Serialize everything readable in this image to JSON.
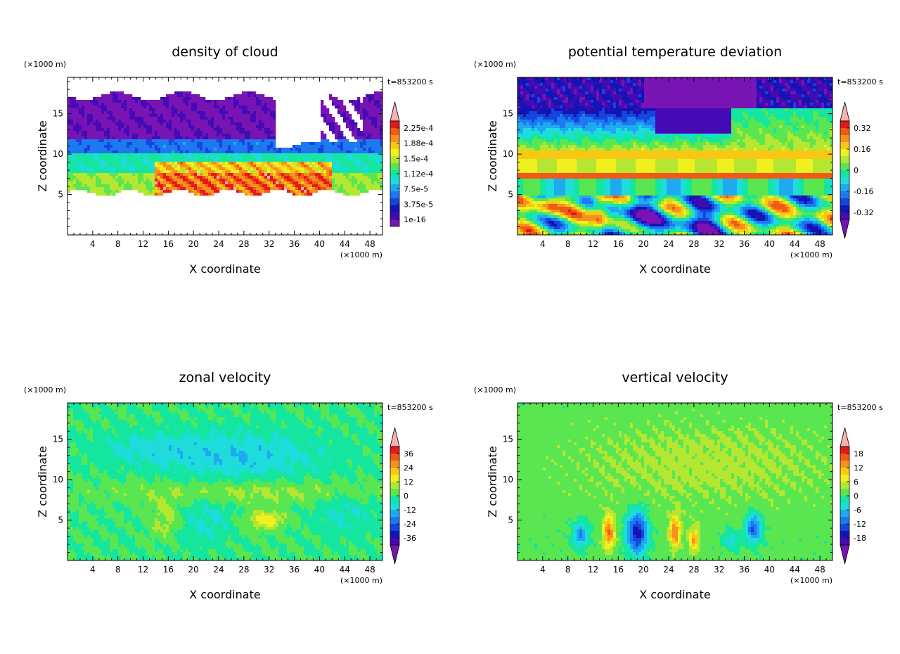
{
  "chart_data": [
    {
      "type": "heatmap",
      "title": "density of cloud",
      "xlabel": "X coordinate",
      "ylabel": "Z coordinate",
      "xunit": "(×1000 m)",
      "yunit": "(×1000 m)",
      "time_label": "t=853200 s",
      "xlim": [
        0,
        50
      ],
      "ylim": [
        0,
        19.5
      ],
      "xticks": [
        4,
        8,
        12,
        16,
        20,
        24,
        28,
        32,
        36,
        40,
        44,
        48
      ],
      "yticks": [
        5,
        10,
        15
      ],
      "colorbar": {
        "labels": [
          "2.25e-4",
          "1.88e-4",
          "1.5e-4",
          "1.12e-4",
          "7.5e-5",
          "3.75e-5",
          "1e-16"
        ],
        "colors": [
          "#f9b2b2",
          "#e41a1a",
          "#f05a14",
          "#f5911e",
          "#f9c814",
          "#f0f01e",
          "#b4e632",
          "#5ae650",
          "#14e6a0",
          "#1edcdc",
          "#1eaaf0",
          "#1e78f0",
          "#1446dc",
          "#1414b4",
          "#460ab4",
          "#7814b4"
        ],
        "top_triangle": true,
        "bottom_triangle": false
      },
      "field": "cloud"
    },
    {
      "type": "heatmap",
      "title": "potential temperature deviation",
      "xlabel": "X coordinate",
      "ylabel": "Z coordinate",
      "xunit": "(×1000 m)",
      "yunit": "(×1000 m)",
      "time_label": "t=853200 s",
      "xlim": [
        0,
        50
      ],
      "ylim": [
        0,
        19.5
      ],
      "xticks": [
        4,
        8,
        12,
        16,
        20,
        24,
        28,
        32,
        36,
        40,
        44,
        48
      ],
      "yticks": [
        5,
        10,
        15
      ],
      "colorbar": {
        "labels": [
          "0.32",
          "0.16",
          "0",
          "-0.16",
          "-0.32"
        ],
        "colors": [
          "#f9b2b2",
          "#e41a1a",
          "#f05a14",
          "#f5911e",
          "#f9c814",
          "#f0f01e",
          "#b4e632",
          "#5ae650",
          "#14e6a0",
          "#1edcdc",
          "#1eaaf0",
          "#1e78f0",
          "#1446dc",
          "#1414b4",
          "#460ab4",
          "#7814b4"
        ],
        "top_triangle": true,
        "bottom_triangle": true
      },
      "field": "theta"
    },
    {
      "type": "heatmap",
      "title": "zonal velocity",
      "xlabel": "X coordinate",
      "ylabel": "Z coordinate",
      "xunit": "(×1000 m)",
      "yunit": "(×1000 m)",
      "time_label": "t=853200 s",
      "xlim": [
        0,
        50
      ],
      "ylim": [
        0,
        19.5
      ],
      "xticks": [
        4,
        8,
        12,
        16,
        20,
        24,
        28,
        32,
        36,
        40,
        44,
        48
      ],
      "yticks": [
        5,
        10,
        15
      ],
      "colorbar": {
        "labels": [
          "36",
          "24",
          "12",
          "0",
          "-12",
          "-24",
          "-36"
        ],
        "colors": [
          "#f9b2b2",
          "#e41a1a",
          "#f05a14",
          "#f5911e",
          "#f9c814",
          "#f0f01e",
          "#b4e632",
          "#5ae650",
          "#14e6a0",
          "#1edcdc",
          "#1eaaf0",
          "#1e78f0",
          "#1446dc",
          "#1414b4",
          "#460ab4",
          "#7814b4"
        ],
        "top_triangle": true,
        "bottom_triangle": true
      },
      "field": "u"
    },
    {
      "type": "heatmap",
      "title": "vertical velocity",
      "xlabel": "X coordinate",
      "ylabel": "Z coordinate",
      "xunit": "(×1000 m)",
      "yunit": "(×1000 m)",
      "time_label": "t=853200 s",
      "xlim": [
        0,
        50
      ],
      "ylim": [
        0,
        19.5
      ],
      "xticks": [
        4,
        8,
        12,
        16,
        20,
        24,
        28,
        32,
        36,
        40,
        44,
        48
      ],
      "yticks": [
        5,
        10,
        15
      ],
      "colorbar": {
        "labels": [
          "18",
          "12",
          "6",
          "0",
          "-6",
          "-12",
          "-18"
        ],
        "colors": [
          "#f9b2b2",
          "#e41a1a",
          "#f05a14",
          "#f5911e",
          "#f9c814",
          "#f0f01e",
          "#b4e632",
          "#5ae650",
          "#14e6a0",
          "#1edcdc",
          "#1eaaf0",
          "#1e78f0",
          "#1446dc",
          "#1414b4",
          "#460ab4",
          "#7814b4"
        ],
        "top_triangle": true,
        "bottom_triangle": true
      },
      "field": "w"
    }
  ]
}
